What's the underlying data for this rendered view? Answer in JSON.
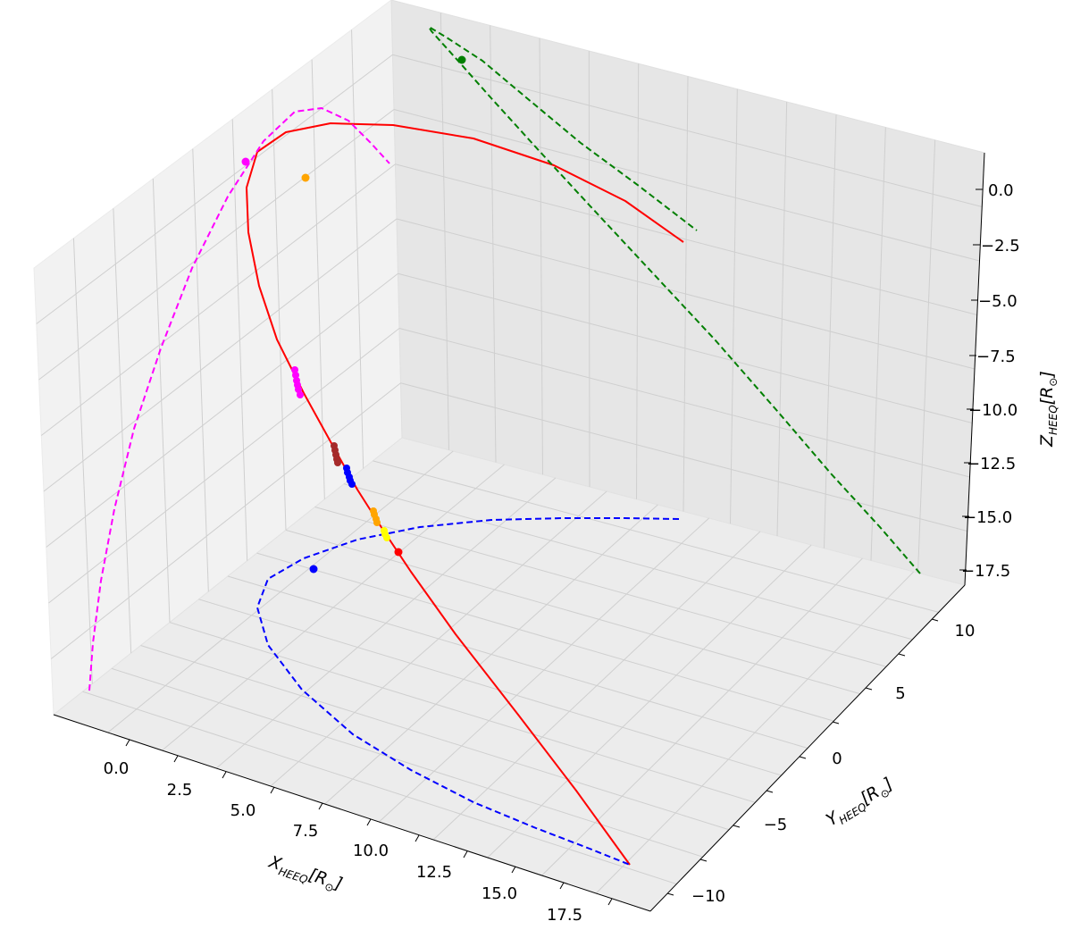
{
  "chart_data": {
    "type": "scatter3d",
    "axes": {
      "x": {
        "label": "X",
        "sub": "HEEQ",
        "unit": "[R",
        "unit_end": "]",
        "ticks": [
          "0.0",
          "2.5",
          "5.0",
          "7.5",
          "10.0",
          "12.5",
          "15.0",
          "17.5"
        ]
      },
      "y": {
        "label": "Y",
        "sub": "HEEQ",
        "unit": "[R",
        "unit_end": "]",
        "ticks": [
          "10",
          "5",
          "0",
          "−5",
          "−10"
        ]
      },
      "z": {
        "label": "Z",
        "sub": "HEEQ",
        "unit": "[R",
        "unit_end": "]",
        "ticks": [
          "0.0",
          "−2.5",
          "−5.0",
          "−7.5",
          "−10.0",
          "−12.5",
          "−15.0",
          "−17.5"
        ]
      }
    },
    "grid": true,
    "colors": {
      "red": "#ff0000",
      "magenta": "#ff00ff",
      "blue": "#0000ff",
      "green": "#007f00",
      "orange": "#ffa500",
      "brown": "#a52a2a",
      "yellow": "#ffff00"
    },
    "curves": [
      {
        "color": "red",
        "style": "solid",
        "points": [
          [
            765,
            271
          ],
          [
            700,
            225
          ],
          [
            620,
            185
          ],
          [
            530,
            155
          ],
          [
            440,
            140
          ],
          [
            370,
            138
          ],
          [
            320,
            148
          ],
          [
            288,
            170
          ],
          [
            276,
            210
          ],
          [
            278,
            260
          ],
          [
            290,
            320
          ],
          [
            310,
            380
          ],
          [
            340,
            440
          ],
          [
            372,
            498
          ],
          [
            400,
            548
          ],
          [
            428,
            592
          ],
          [
            460,
            640
          ],
          [
            510,
            710
          ],
          [
            580,
            800
          ],
          [
            645,
            885
          ],
          [
            705,
            968
          ]
        ]
      },
      {
        "color": "magenta",
        "style": "dashed",
        "points": [
          [
            100,
            773
          ],
          [
            104,
            720
          ],
          [
            113,
            650
          ],
          [
            128,
            570
          ],
          [
            150,
            480
          ],
          [
            180,
            390
          ],
          [
            215,
            300
          ],
          [
            255,
            220
          ],
          [
            295,
            158
          ],
          [
            330,
            125
          ],
          [
            360,
            121
          ],
          [
            390,
            135
          ],
          [
            415,
            160
          ],
          [
            436,
            183
          ]
        ]
      },
      {
        "color": "blue",
        "style": "dashed",
        "points": [
          [
            760,
            581
          ],
          [
            700,
            580
          ],
          [
            630,
            580
          ],
          [
            550,
            582
          ],
          [
            470,
            590
          ],
          [
            400,
            604
          ],
          [
            340,
            625
          ],
          [
            300,
            648
          ],
          [
            288,
            680
          ],
          [
            300,
            722
          ],
          [
            338,
            772
          ],
          [
            395,
            822
          ],
          [
            460,
            862
          ],
          [
            530,
            898
          ],
          [
            600,
            927
          ],
          [
            660,
            950
          ],
          [
            705,
            968
          ]
        ]
      },
      {
        "color": "green",
        "style": "dashed",
        "points": [
          [
            1030,
            642
          ],
          [
            985,
            590
          ],
          [
            930,
            530
          ],
          [
            870,
            460
          ],
          [
            800,
            380
          ],
          [
            730,
            305
          ],
          [
            660,
            230
          ],
          [
            600,
            165
          ],
          [
            550,
            110
          ],
          [
            510,
            65
          ],
          [
            483,
            35
          ],
          [
            480,
            30
          ],
          [
            500,
            42
          ],
          [
            540,
            68
          ],
          [
            590,
            110
          ],
          [
            650,
            160
          ],
          [
            715,
            208
          ],
          [
            780,
            258
          ]
        ]
      }
    ],
    "points": [
      {
        "color": "magenta",
        "x": 275,
        "y": 181,
        "r": 4.5
      },
      {
        "color": "orange",
        "x": 342,
        "y": 199,
        "r": 4.5
      },
      {
        "color": "green",
        "x": 517,
        "y": 67,
        "r": 4.5
      },
      {
        "color": "blue",
        "x": 351,
        "y": 637,
        "r": 4.5
      },
      {
        "color": "red",
        "x": 446,
        "y": 618,
        "r": 4.5
      }
    ],
    "clusters": [
      {
        "color": "magenta",
        "points": [
          [
            330,
            414
          ],
          [
            331,
            420
          ],
          [
            332,
            426
          ],
          [
            333,
            431
          ],
          [
            334,
            436
          ],
          [
            336,
            442
          ]
        ]
      },
      {
        "color": "brown",
        "points": [
          [
            374,
            499
          ],
          [
            375,
            504
          ],
          [
            376,
            509
          ],
          [
            377,
            514
          ],
          [
            378,
            518
          ]
        ]
      },
      {
        "color": "blue",
        "points": [
          [
            388,
            524
          ],
          [
            389,
            529
          ],
          [
            391,
            534
          ],
          [
            392,
            538
          ],
          [
            394,
            542
          ]
        ]
      },
      {
        "color": "orange",
        "points": [
          [
            418,
            572
          ],
          [
            419,
            576
          ],
          [
            421,
            581
          ],
          [
            422,
            585
          ]
        ]
      },
      {
        "color": "yellow",
        "points": [
          [
            430,
            594
          ],
          [
            431,
            598
          ],
          [
            433,
            602
          ]
        ]
      }
    ]
  }
}
